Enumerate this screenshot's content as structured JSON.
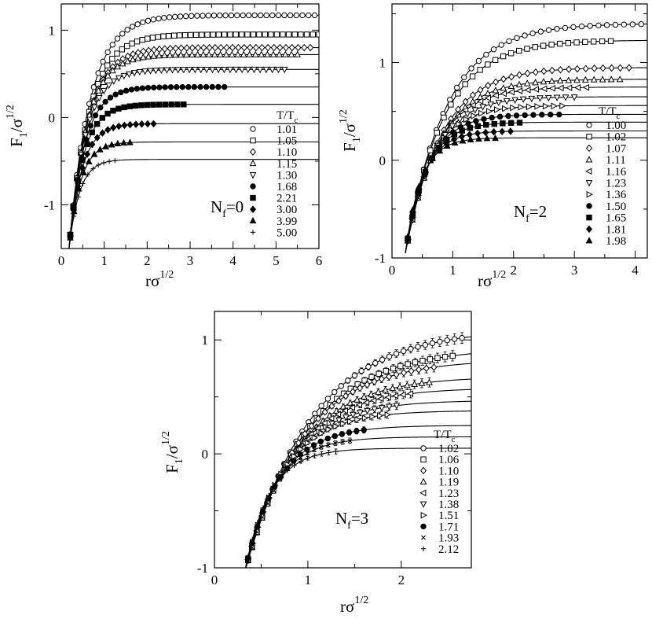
{
  "panels": [
    {
      "flavors": "N",
      "flavors_sub": "f",
      "flavors_value": "=0",
      "xlabel_main": "rσ",
      "xlabel_sup": "1/2",
      "ylabel_main": "F",
      "ylabel_sub": "1",
      "ylabel_mid": "/σ",
      "ylabel_sup": "1/2",
      "legend_title_main": "T/T",
      "legend_title_sub": "c",
      "xlim": [
        0,
        6
      ],
      "ylim": [
        -1.5,
        1.3
      ],
      "xticks": [
        0,
        1,
        2,
        3,
        4,
        5,
        6
      ],
      "yticks": [
        -1,
        0,
        1
      ],
      "series": [
        {
          "name": "1.01",
          "marker": "circle-open",
          "plateau": 1.17,
          "xend": 5.9
        },
        {
          "name": "1.05",
          "marker": "square-open",
          "plateau": 0.95,
          "xend": 6.0
        },
        {
          "name": "1.10",
          "marker": "diamond-open",
          "plateau": 0.8,
          "xend": 5.8
        },
        {
          "name": "1.15",
          "marker": "triangle-up-open",
          "plateau": 0.72,
          "xend": 5.5
        },
        {
          "name": "1.30",
          "marker": "triangle-down-open",
          "plateau": 0.55,
          "xend": 5.2
        },
        {
          "name": "1.68",
          "marker": "circle-filled",
          "plateau": 0.35,
          "xend": 3.8
        },
        {
          "name": "2.21",
          "marker": "square-filled",
          "plateau": 0.15,
          "xend": 2.85
        },
        {
          "name": "3.00",
          "marker": "diamond-filled",
          "plateau": -0.07,
          "xend": 2.15
        },
        {
          "name": "3.99",
          "marker": "triangle-up-filled",
          "plateau": -0.28,
          "xend": 1.6
        },
        {
          "name": "5.00",
          "marker": "plus",
          "plateau": -0.48,
          "xend": 1.25
        }
      ]
    },
    {
      "flavors": "N",
      "flavors_sub": "f",
      "flavors_value": "=2",
      "xlabel_main": "rσ",
      "xlabel_sup": "1/2",
      "ylabel_main": "F",
      "ylabel_sub": "1",
      "ylabel_mid": "/σ",
      "ylabel_sup": "1/2",
      "legend_title_main": "T/T",
      "legend_title_sub": "c",
      "xlim": [
        0,
        4.2
      ],
      "ylim": [
        -1,
        1.6
      ],
      "xticks": [
        0,
        1,
        2,
        3,
        4
      ],
      "yticks": [
        -1,
        0,
        1
      ],
      "series": [
        {
          "name": "1.00",
          "marker": "circle-open",
          "plateau": 1.4,
          "xend": 4.1
        },
        {
          "name": "1.02",
          "marker": "square-open",
          "plateau": 1.23,
          "xend": 3.6
        },
        {
          "name": "1.07",
          "marker": "diamond-open",
          "plateau": 0.95,
          "xend": 3.9
        },
        {
          "name": "1.11",
          "marker": "triangle-up-open",
          "plateau": 0.83,
          "xend": 3.75
        },
        {
          "name": "1.16",
          "marker": "triangle-left-open",
          "plateau": 0.75,
          "xend": 3.2
        },
        {
          "name": "1.23",
          "marker": "triangle-down-open",
          "plateau": 0.65,
          "xend": 3.0
        },
        {
          "name": "1.36",
          "marker": "triangle-right-open",
          "plateau": 0.56,
          "xend": 2.8
        },
        {
          "name": "1.50",
          "marker": "circle-filled",
          "plateau": 0.47,
          "xend": 2.75
        },
        {
          "name": "1.65",
          "marker": "square-filled",
          "plateau": 0.39,
          "xend": 2.1
        },
        {
          "name": "1.81",
          "marker": "diamond-filled",
          "plateau": 0.3,
          "xend": 1.95
        },
        {
          "name": "1.98",
          "marker": "triangle-up-filled",
          "plateau": 0.23,
          "xend": 1.7
        }
      ]
    },
    {
      "flavors": "N",
      "flavors_sub": "f",
      "flavors_value": "=3",
      "xlabel_main": "rσ",
      "xlabel_sup": "1/2",
      "ylabel_main": "F",
      "ylabel_sub": "1",
      "ylabel_mid": "/σ",
      "ylabel_sup": "1/2",
      "legend_title_main": "T/T",
      "legend_title_sub": "c",
      "xlim": [
        0,
        2.75
      ],
      "ylim": [
        -1,
        1.25
      ],
      "xticks": [
        0,
        1,
        2
      ],
      "yticks": [
        -1,
        0,
        1
      ],
      "series": [
        {
          "name": "1.02",
          "marker": "circle-open",
          "plateau": 1.1,
          "xend": 2.65
        },
        {
          "name": "1.06",
          "marker": "square-open",
          "plateau": 0.93,
          "xend": 2.55
        },
        {
          "name": "1.10",
          "marker": "diamond-open",
          "plateau": 0.83,
          "xend": 2.35
        },
        {
          "name": "1.19",
          "marker": "triangle-up-open",
          "plateau": 0.68,
          "xend": 2.3
        },
        {
          "name": "1.23",
          "marker": "triangle-left-open",
          "plateau": 0.58,
          "xend": 2.1
        },
        {
          "name": "1.38",
          "marker": "triangle-down-open",
          "plateau": 0.47,
          "xend": 1.95
        },
        {
          "name": "1.51",
          "marker": "triangle-right-open",
          "plateau": 0.38,
          "xend": 1.85
        },
        {
          "name": "1.71",
          "marker": "circle-filled",
          "plateau": 0.25,
          "xend": 1.6
        },
        {
          "name": "1.93",
          "marker": "cross",
          "plateau": 0.15,
          "xend": 1.45
        },
        {
          "name": "2.12",
          "marker": "plus",
          "plateau": 0.05,
          "xend": 1.3
        }
      ]
    }
  ],
  "chart_data": [
    {
      "type": "scatter",
      "title": "",
      "xlabel": "rσ^1/2",
      "ylabel": "F1/σ^1/2",
      "legend_title": "T/Tc",
      "annotation": "Nf=0",
      "xlim": [
        0,
        6
      ],
      "ylim": [
        -1.5,
        1.3
      ],
      "legend": "bottom-right",
      "series": [
        {
          "name": "1.01",
          "x": [
            0.2,
            0.5,
            1.0,
            2.0,
            3.0,
            5.9
          ],
          "y": [
            -1.2,
            -0.2,
            0.6,
            1.1,
            1.16,
            1.17
          ]
        },
        {
          "name": "1.05",
          "x": [
            0.2,
            0.5,
            1.0,
            2.0,
            3.0,
            6.0
          ],
          "y": [
            -1.2,
            -0.21,
            0.55,
            0.9,
            0.94,
            0.95
          ]
        },
        {
          "name": "1.10",
          "x": [
            0.2,
            0.5,
            1.0,
            2.0,
            3.0,
            5.8
          ],
          "y": [
            -1.2,
            -0.22,
            0.5,
            0.76,
            0.79,
            0.8
          ]
        },
        {
          "name": "1.15",
          "x": [
            0.2,
            0.5,
            1.0,
            2.0,
            3.0,
            5.5
          ],
          "y": [
            -1.2,
            -0.23,
            0.45,
            0.69,
            0.71,
            0.72
          ]
        },
        {
          "name": "1.30",
          "x": [
            0.2,
            0.5,
            1.0,
            2.0,
            3.0,
            5.2
          ],
          "y": [
            -1.2,
            -0.25,
            0.35,
            0.52,
            0.54,
            0.55
          ]
        },
        {
          "name": "1.68",
          "x": [
            0.2,
            0.5,
            1.0,
            2.0,
            3.0,
            3.8
          ],
          "y": [
            -1.2,
            -0.28,
            0.2,
            0.34,
            0.35,
            0.35
          ]
        },
        {
          "name": "2.21",
          "x": [
            0.2,
            0.5,
            1.0,
            2.0,
            2.85
          ],
          "y": [
            -1.2,
            -0.32,
            0.05,
            0.15,
            0.15
          ]
        },
        {
          "name": "3.00",
          "x": [
            0.2,
            0.5,
            1.0,
            2.0,
            2.15
          ],
          "y": [
            -1.2,
            -0.38,
            -0.12,
            -0.07,
            -0.07
          ]
        },
        {
          "name": "3.99",
          "x": [
            0.2,
            0.5,
            1.0,
            1.6
          ],
          "y": [
            -1.2,
            -0.45,
            -0.3,
            -0.28
          ]
        },
        {
          "name": "5.00",
          "x": [
            0.2,
            0.5,
            1.0,
            1.25
          ],
          "y": [
            -1.2,
            -0.55,
            -0.49,
            -0.48
          ]
        }
      ]
    },
    {
      "type": "scatter",
      "title": "",
      "xlabel": "rσ^1/2",
      "ylabel": "F1/σ^1/2",
      "legend_title": "T/Tc",
      "annotation": "Nf=2",
      "xlim": [
        0,
        4.2
      ],
      "ylim": [
        -1,
        1.6
      ],
      "legend": "bottom-right",
      "series": [
        {
          "name": "1.00",
          "x": [
            0.25,
            0.5,
            1.0,
            2.0,
            3.0,
            4.1
          ],
          "y": [
            -0.85,
            -0.2,
            0.6,
            1.2,
            1.36,
            1.4
          ]
        },
        {
          "name": "1.02",
          "x": [
            0.25,
            0.5,
            1.0,
            2.0,
            3.0,
            3.6
          ],
          "y": [
            -0.85,
            -0.2,
            0.55,
            1.07,
            1.2,
            1.23
          ]
        },
        {
          "name": "1.07",
          "x": [
            0.25,
            0.5,
            1.0,
            2.0,
            3.0,
            3.9
          ],
          "y": [
            -0.85,
            -0.21,
            0.45,
            0.85,
            0.93,
            0.95
          ]
        },
        {
          "name": "1.11",
          "x": [
            0.25,
            0.5,
            1.0,
            2.0,
            3.0,
            3.75
          ],
          "y": [
            -0.85,
            -0.22,
            0.4,
            0.75,
            0.81,
            0.83
          ]
        },
        {
          "name": "1.16",
          "x": [
            0.25,
            0.5,
            1.0,
            2.0,
            3.2
          ],
          "y": [
            -0.85,
            -0.22,
            0.36,
            0.68,
            0.75
          ]
        },
        {
          "name": "1.23",
          "x": [
            0.25,
            0.5,
            1.0,
            2.0,
            3.0
          ],
          "y": [
            -0.85,
            -0.23,
            0.32,
            0.6,
            0.65
          ]
        },
        {
          "name": "1.36",
          "x": [
            0.25,
            0.5,
            1.0,
            2.0,
            2.8
          ],
          "y": [
            -0.85,
            -0.24,
            0.27,
            0.52,
            0.56
          ]
        },
        {
          "name": "1.50",
          "x": [
            0.25,
            0.5,
            1.0,
            2.0,
            2.75
          ],
          "y": [
            -0.85,
            -0.25,
            0.22,
            0.44,
            0.47
          ]
        },
        {
          "name": "1.65",
          "x": [
            0.25,
            0.5,
            1.0,
            2.0,
            2.1
          ],
          "y": [
            -0.85,
            -0.26,
            0.16,
            0.38,
            0.39
          ]
        },
        {
          "name": "1.81",
          "x": [
            0.25,
            0.5,
            1.0,
            1.95
          ],
          "y": [
            -0.85,
            -0.27,
            0.12,
            0.3
          ]
        },
        {
          "name": "1.98",
          "x": [
            0.25,
            0.5,
            1.0,
            1.7
          ],
          "y": [
            -0.85,
            -0.28,
            0.08,
            0.23
          ]
        }
      ]
    },
    {
      "type": "scatter",
      "title": "",
      "xlabel": "rσ^1/2",
      "ylabel": "F1/σ^1/2",
      "legend_title": "T/Tc",
      "annotation": "Nf=3",
      "xlim": [
        0,
        2.75
      ],
      "ylim": [
        -1,
        1.25
      ],
      "legend": "bottom-right",
      "series": [
        {
          "name": "1.02",
          "x": [
            0.33,
            0.5,
            1.0,
            1.5,
            2.0,
            2.65
          ],
          "y": [
            -0.83,
            -0.3,
            0.4,
            0.8,
            0.98,
            1.1
          ]
        },
        {
          "name": "1.06",
          "x": [
            0.33,
            0.5,
            1.0,
            1.5,
            2.0,
            2.55
          ],
          "y": [
            -0.83,
            -0.3,
            0.35,
            0.7,
            0.85,
            0.93
          ]
        },
        {
          "name": "1.10",
          "x": [
            0.33,
            0.5,
            1.0,
            1.5,
            2.0,
            2.35
          ],
          "y": [
            -0.83,
            -0.31,
            0.3,
            0.62,
            0.77,
            0.83
          ]
        },
        {
          "name": "1.19",
          "x": [
            0.33,
            0.5,
            1.0,
            1.5,
            2.0,
            2.3
          ],
          "y": [
            -0.83,
            -0.32,
            0.25,
            0.52,
            0.64,
            0.68
          ]
        },
        {
          "name": "1.23",
          "x": [
            0.33,
            0.5,
            1.0,
            1.5,
            2.1
          ],
          "y": [
            -0.83,
            -0.33,
            0.2,
            0.45,
            0.58
          ]
        },
        {
          "name": "1.38",
          "x": [
            0.33,
            0.5,
            1.0,
            1.5,
            1.95
          ],
          "y": [
            -0.83,
            -0.34,
            0.15,
            0.38,
            0.47
          ]
        },
        {
          "name": "1.51",
          "x": [
            0.33,
            0.5,
            1.0,
            1.5,
            1.85
          ],
          "y": [
            -0.83,
            -0.35,
            0.1,
            0.32,
            0.38
          ]
        },
        {
          "name": "1.71",
          "x": [
            0.33,
            0.5,
            1.0,
            1.6
          ],
          "y": [
            -0.83,
            -0.36,
            0.05,
            0.25
          ]
        },
        {
          "name": "1.93",
          "x": [
            0.33,
            0.5,
            1.0,
            1.45
          ],
          "y": [
            -0.83,
            -0.37,
            0.0,
            0.15
          ]
        },
        {
          "name": "2.12",
          "x": [
            0.33,
            0.5,
            1.0,
            1.3
          ],
          "y": [
            -0.83,
            -0.38,
            -0.06,
            0.05
          ]
        }
      ]
    }
  ]
}
